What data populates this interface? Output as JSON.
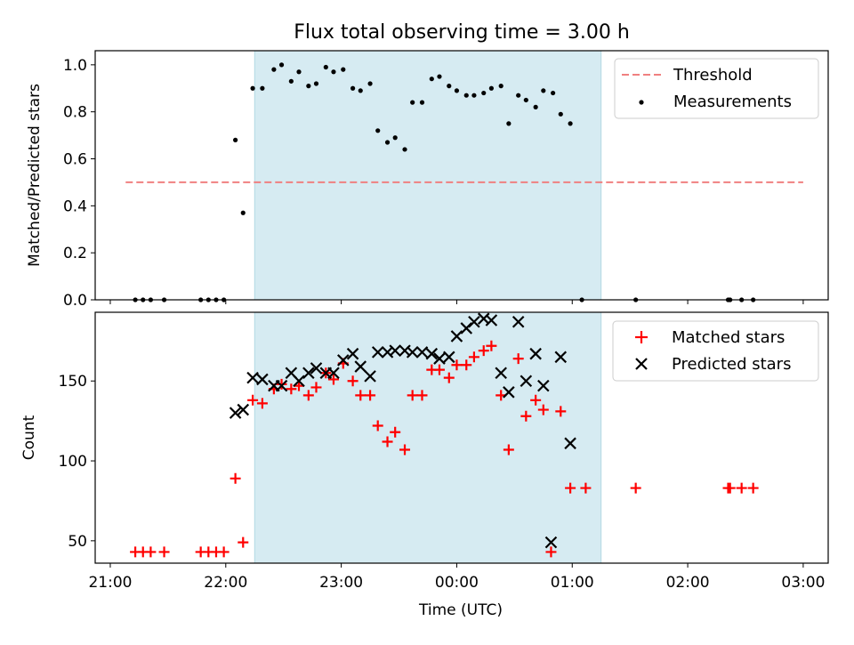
{
  "chart_data": [
    {
      "type": "scatter",
      "title": "Flux total observing time = 3.00 h",
      "xlabel": "",
      "ylabel": "Matched/Predicted stars",
      "ylim": [
        0.0,
        1.06
      ],
      "yticks": [
        "0.0",
        "0.2",
        "0.4",
        "0.6",
        "0.8",
        "1.0"
      ],
      "xlim": [
        "21:00",
        "03:00"
      ],
      "shaded_interval": [
        "22:15",
        "01:15"
      ],
      "grid": false,
      "legend_position": "upper right",
      "legend": [
        "Threshold",
        "Measurements"
      ],
      "threshold": {
        "name": "Threshold",
        "y": 0.5,
        "x": [
          "21:08",
          "03:00"
        ],
        "color": "#f08080",
        "style": "dashed"
      },
      "series": [
        {
          "name": "Measurements",
          "color": "#000000",
          "marker": "dot",
          "points": [
            [
              "21:13",
              0.0
            ],
            [
              "21:17",
              0.0
            ],
            [
              "21:21",
              0.0
            ],
            [
              "21:28",
              0.0
            ],
            [
              "21:47",
              0.0
            ],
            [
              "21:51",
              0.0
            ],
            [
              "21:55",
              0.0
            ],
            [
              "21:59",
              0.0
            ],
            [
              "22:05",
              0.68
            ],
            [
              "22:09",
              0.37
            ],
            [
              "22:14",
              0.9
            ],
            [
              "22:19",
              0.9
            ],
            [
              "22:25",
              0.98
            ],
            [
              "22:29",
              1.0
            ],
            [
              "22:34",
              0.93
            ],
            [
              "22:38",
              0.97
            ],
            [
              "22:43",
              0.91
            ],
            [
              "22:47",
              0.92
            ],
            [
              "22:52",
              0.99
            ],
            [
              "22:56",
              0.97
            ],
            [
              "23:01",
              0.98
            ],
            [
              "23:06",
              0.9
            ],
            [
              "23:10",
              0.89
            ],
            [
              "23:15",
              0.92
            ],
            [
              "23:19",
              0.72
            ],
            [
              "23:24",
              0.67
            ],
            [
              "23:28",
              0.69
            ],
            [
              "23:33",
              0.64
            ],
            [
              "23:37",
              0.84
            ],
            [
              "23:42",
              0.84
            ],
            [
              "23:47",
              0.94
            ],
            [
              "23:51",
              0.95
            ],
            [
              "23:56",
              0.91
            ],
            [
              "00:00",
              0.89
            ],
            [
              "00:05",
              0.87
            ],
            [
              "00:09",
              0.87
            ],
            [
              "00:14",
              0.88
            ],
            [
              "00:18",
              0.9
            ],
            [
              "00:23",
              0.91
            ],
            [
              "00:27",
              0.75
            ],
            [
              "00:32",
              0.87
            ],
            [
              "00:36",
              0.85
            ],
            [
              "00:41",
              0.82
            ],
            [
              "00:45",
              0.89
            ],
            [
              "00:50",
              0.88
            ],
            [
              "00:54",
              0.79
            ],
            [
              "00:59",
              0.75
            ],
            [
              "01:05",
              0.0
            ],
            [
              "01:33",
              0.0
            ],
            [
              "02:21",
              0.0
            ],
            [
              "02:22",
              0.0
            ],
            [
              "02:28",
              0.0
            ],
            [
              "02:34",
              0.0
            ]
          ]
        }
      ]
    },
    {
      "type": "scatter",
      "title": "",
      "xlabel": "Time (UTC)",
      "ylabel": "Count",
      "ylim": [
        36,
        193
      ],
      "yticks": [
        "50",
        "100",
        "150"
      ],
      "xticks": [
        "21:00",
        "22:00",
        "23:00",
        "00:00",
        "01:00",
        "02:00",
        "03:00"
      ],
      "shaded_interval": [
        "22:15",
        "01:15"
      ],
      "grid": false,
      "legend_position": "upper right",
      "legend": [
        "Matched stars",
        "Predicted stars"
      ],
      "series": [
        {
          "name": "Matched stars",
          "color": "#ff0000",
          "marker": "plus",
          "points": [
            [
              "21:13",
              43
            ],
            [
              "21:17",
              43
            ],
            [
              "21:21",
              43
            ],
            [
              "21:28",
              43
            ],
            [
              "21:47",
              43
            ],
            [
              "21:51",
              43
            ],
            [
              "21:55",
              43
            ],
            [
              "21:59",
              43
            ],
            [
              "22:05",
              89
            ],
            [
              "22:09",
              49
            ],
            [
              "22:14",
              138
            ],
            [
              "22:19",
              136
            ],
            [
              "22:25",
              145
            ],
            [
              "22:29",
              148
            ],
            [
              "22:34",
              145
            ],
            [
              "22:38",
              147
            ],
            [
              "22:43",
              141
            ],
            [
              "22:47",
              146
            ],
            [
              "22:52",
              155
            ],
            [
              "22:56",
              151
            ],
            [
              "23:01",
              161
            ],
            [
              "23:06",
              150
            ],
            [
              "23:10",
              141
            ],
            [
              "23:15",
              141
            ],
            [
              "23:19",
              122
            ],
            [
              "23:24",
              112
            ],
            [
              "23:28",
              118
            ],
            [
              "23:33",
              107
            ],
            [
              "23:37",
              141
            ],
            [
              "23:42",
              141
            ],
            [
              "23:47",
              157
            ],
            [
              "23:51",
              157
            ],
            [
              "23:56",
              152
            ],
            [
              "00:00",
              160
            ],
            [
              "00:05",
              160
            ],
            [
              "00:09",
              165
            ],
            [
              "00:14",
              169
            ],
            [
              "00:18",
              172
            ],
            [
              "00:23",
              141
            ],
            [
              "00:27",
              107
            ],
            [
              "00:32",
              164
            ],
            [
              "00:36",
              128
            ],
            [
              "00:41",
              138
            ],
            [
              "00:45",
              132
            ],
            [
              "00:49",
              43
            ],
            [
              "00:54",
              131
            ],
            [
              "00:59",
              83
            ],
            [
              "01:07",
              83
            ],
            [
              "01:33",
              83
            ],
            [
              "02:21",
              83
            ],
            [
              "02:22",
              83
            ],
            [
              "02:28",
              83
            ],
            [
              "02:34",
              83
            ]
          ]
        },
        {
          "name": "Predicted stars",
          "color": "#000000",
          "marker": "x",
          "points": [
            [
              "22:05",
              130
            ],
            [
              "22:09",
              132
            ],
            [
              "22:14",
              152
            ],
            [
              "22:19",
              151
            ],
            [
              "22:25",
              147
            ],
            [
              "22:29",
              147
            ],
            [
              "22:34",
              155
            ],
            [
              "22:38",
              150
            ],
            [
              "22:43",
              155
            ],
            [
              "22:47",
              158
            ],
            [
              "22:52",
              155
            ],
            [
              "22:56",
              155
            ],
            [
              "23:01",
              163
            ],
            [
              "23:06",
              167
            ],
            [
              "23:10",
              159
            ],
            [
              "23:15",
              153
            ],
            [
              "23:19",
              168
            ],
            [
              "23:24",
              168
            ],
            [
              "23:28",
              169
            ],
            [
              "23:33",
              169
            ],
            [
              "23:37",
              168
            ],
            [
              "23:42",
              168
            ],
            [
              "23:47",
              167
            ],
            [
              "23:51",
              164
            ],
            [
              "23:56",
              165
            ],
            [
              "00:00",
              178
            ],
            [
              "00:05",
              183
            ],
            [
              "00:09",
              187
            ],
            [
              "00:14",
              189
            ],
            [
              "00:18",
              188
            ],
            [
              "00:23",
              155
            ],
            [
              "00:27",
              143
            ],
            [
              "00:32",
              187
            ],
            [
              "00:36",
              150
            ],
            [
              "00:41",
              167
            ],
            [
              "00:45",
              147
            ],
            [
              "00:49",
              49
            ],
            [
              "00:54",
              165
            ],
            [
              "00:59",
              111
            ]
          ]
        }
      ]
    }
  ]
}
